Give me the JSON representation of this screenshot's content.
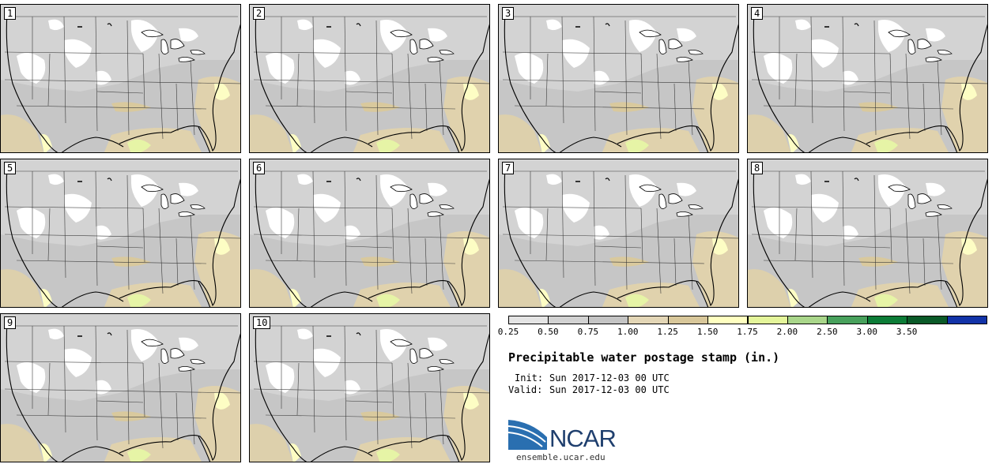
{
  "panels": [
    {
      "label": "1"
    },
    {
      "label": "2"
    },
    {
      "label": "3"
    },
    {
      "label": "4"
    },
    {
      "label": "5"
    },
    {
      "label": "6"
    },
    {
      "label": "7"
    },
    {
      "label": "8"
    },
    {
      "label": "9"
    },
    {
      "label": "10"
    }
  ],
  "colorbar": {
    "ticks": [
      "0.25",
      "0.50",
      "0.75",
      "1.00",
      "1.25",
      "1.50",
      "1.75",
      "2.00",
      "2.50",
      "3.00",
      "3.50"
    ],
    "colors": [
      "#e4e4e4",
      "#d2d2d2",
      "#c4c4c4",
      "#e3d6b6",
      "#d8c79a",
      "#ffffc0",
      "#e4f59a",
      "#a9d68a",
      "#48a15c",
      "#0c7c37",
      "#0a5a28",
      "#1233a8"
    ]
  },
  "title": "Precipitable water postage stamp (in.)",
  "init_label": "Init:",
  "init_value": "Sun 2017-12-03 00 UTC",
  "valid_label": "Valid:",
  "valid_value": "Sun 2017-12-03 00 UTC",
  "logo_text": "NCAR",
  "website": "ensemble.ucar.edu"
}
